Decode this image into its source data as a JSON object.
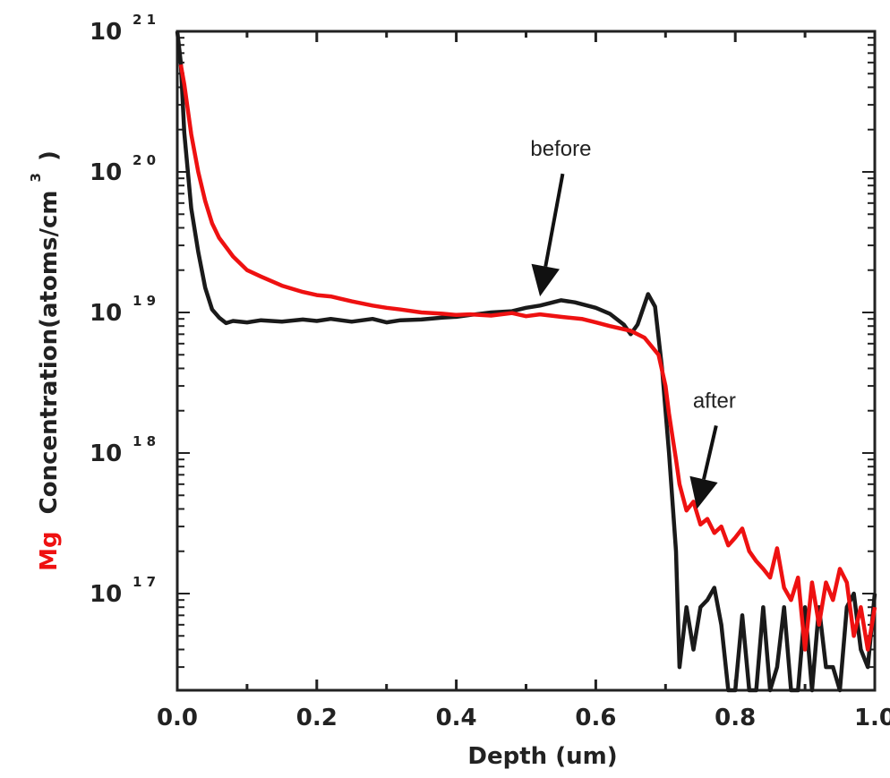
{
  "chart_data": {
    "type": "line",
    "title": "",
    "xlabel": "Depth (um)",
    "ylabel": {
      "prefix": "Mg",
      "prefix_color": "#ee1111",
      "text": "Concentration(atoms/cm",
      "superscript": "3",
      "suffix": ")"
    },
    "xlim": [
      0.0,
      1.0
    ],
    "ylim": [
      2e+16,
      1e+21
    ],
    "yscale": "log",
    "x_ticks": [
      "0.0",
      "0.2",
      "0.4",
      "0.6",
      "0.8",
      "1.0"
    ],
    "y_ticks": [
      {
        "base": "10",
        "exp": "21",
        "value": 1e+21
      },
      {
        "base": "10",
        "exp": "20",
        "value": 1e+20
      },
      {
        "base": "10",
        "exp": "19",
        "value": 1e+19
      },
      {
        "base": "10",
        "exp": "18",
        "value": 1e+18
      },
      {
        "base": "10",
        "exp": "17",
        "value": 1e+17
      }
    ],
    "grid": false,
    "legend": null,
    "annotations": [
      {
        "text": "before",
        "target_series": "before",
        "text_xy": [
          0.55,
          1.3e+20
        ],
        "arrow_to": [
          0.52,
          1.3e+19
        ]
      },
      {
        "text": "after",
        "target_series": "after",
        "text_xy": [
          0.77,
          2.1e+18
        ],
        "arrow_to": [
          0.745,
          4e+17
        ]
      }
    ],
    "series": [
      {
        "name": "before",
        "color": "#1a1a1a",
        "x": [
          0.0,
          0.005,
          0.01,
          0.02,
          0.03,
          0.04,
          0.05,
          0.06,
          0.07,
          0.08,
          0.1,
          0.12,
          0.15,
          0.18,
          0.2,
          0.22,
          0.25,
          0.28,
          0.3,
          0.32,
          0.35,
          0.38,
          0.4,
          0.42,
          0.45,
          0.48,
          0.5,
          0.52,
          0.55,
          0.57,
          0.6,
          0.62,
          0.64,
          0.65,
          0.66,
          0.675,
          0.685,
          0.695,
          0.705,
          0.715,
          0.72,
          0.73,
          0.74,
          0.75,
          0.76,
          0.77,
          0.78,
          0.79,
          0.8,
          0.81,
          0.82,
          0.83,
          0.84,
          0.85,
          0.86,
          0.87,
          0.88,
          0.89,
          0.9,
          0.91,
          0.92,
          0.93,
          0.94,
          0.95,
          0.96,
          0.97,
          0.98,
          0.99,
          1.0
        ],
        "values": [
          1e+21,
          6e+20,
          1.9e+20,
          5.5e+19,
          2.7e+19,
          1.5e+19,
          1.05e+19,
          9.2e+18,
          8.4e+18,
          8.7e+18,
          8.5e+18,
          8.8e+18,
          8.6e+18,
          8.9e+18,
          8.7e+18,
          9e+18,
          8.6e+18,
          9e+18,
          8.5e+18,
          8.8e+18,
          8.9e+18,
          9.2e+18,
          9.3e+18,
          9.6e+18,
          1e+19,
          1.02e+19,
          1.08e+19,
          1.12e+19,
          1.22e+19,
          1.18e+19,
          1.08e+19,
          9.8e+18,
          8.2e+18,
          7e+18,
          8.2e+18,
          1.35e+19,
          1.1e+19,
          4e+18,
          1e+18,
          2e+17,
          3e+16,
          8e+16,
          4e+16,
          8e+16,
          9e+16,
          1.1e+17,
          6e+16,
          2e+16,
          2e+16,
          7e+16,
          2e+16,
          2e+16,
          8e+16,
          2e+16,
          3e+16,
          8e+16,
          2e+16,
          2e+16,
          8e+16,
          2e+16,
          8e+16,
          3e+16,
          3e+16,
          2e+16,
          8e+16,
          1e+17,
          4e+16,
          3e+16,
          1e+17
        ]
      },
      {
        "name": "after",
        "color": "#ee1111",
        "x": [
          0.005,
          0.01,
          0.02,
          0.03,
          0.04,
          0.05,
          0.06,
          0.08,
          0.1,
          0.12,
          0.15,
          0.18,
          0.2,
          0.22,
          0.25,
          0.28,
          0.3,
          0.32,
          0.35,
          0.38,
          0.4,
          0.42,
          0.45,
          0.48,
          0.5,
          0.52,
          0.55,
          0.58,
          0.6,
          0.62,
          0.65,
          0.67,
          0.69,
          0.7,
          0.705,
          0.71,
          0.715,
          0.72,
          0.73,
          0.74,
          0.75,
          0.76,
          0.77,
          0.78,
          0.79,
          0.8,
          0.81,
          0.82,
          0.83,
          0.84,
          0.85,
          0.86,
          0.87,
          0.88,
          0.89,
          0.9,
          0.91,
          0.92,
          0.93,
          0.94,
          0.95,
          0.96,
          0.97,
          0.98,
          0.99,
          1.0
        ],
        "values": [
          5.8e+20,
          4.2e+20,
          1.85e+20,
          1e+20,
          6.2e+19,
          4.3e+19,
          3.4e+19,
          2.5e+19,
          2e+19,
          1.8e+19,
          1.55e+19,
          1.4e+19,
          1.33e+19,
          1.3e+19,
          1.2e+19,
          1.12e+19,
          1.08e+19,
          1.05e+19,
          1e+19,
          9.8e+18,
          9.6e+18,
          9.7e+18,
          9.5e+18,
          9.9e+18,
          9.4e+18,
          9.7e+18,
          9.3e+18,
          9e+18,
          8.5e+18,
          8e+18,
          7.4e+18,
          6.6e+18,
          5e+18,
          3e+18,
          1.9e+18,
          1.3e+18,
          9e+17,
          6e+17,
          3.9e+17,
          4.5e+17,
          3.1e+17,
          3.4e+17,
          2.7e+17,
          3e+17,
          2.2e+17,
          2.5e+17,
          2.9e+17,
          2e+17,
          1.7e+17,
          1.5e+17,
          1.3e+17,
          2.1e+17,
          1.1e+17,
          9e+16,
          1.3e+17,
          4e+16,
          1.2e+17,
          6e+16,
          1.2e+17,
          9e+16,
          1.5e+17,
          1.2e+17,
          5e+16,
          8e+16,
          4e+16,
          8e+16
        ]
      }
    ]
  }
}
